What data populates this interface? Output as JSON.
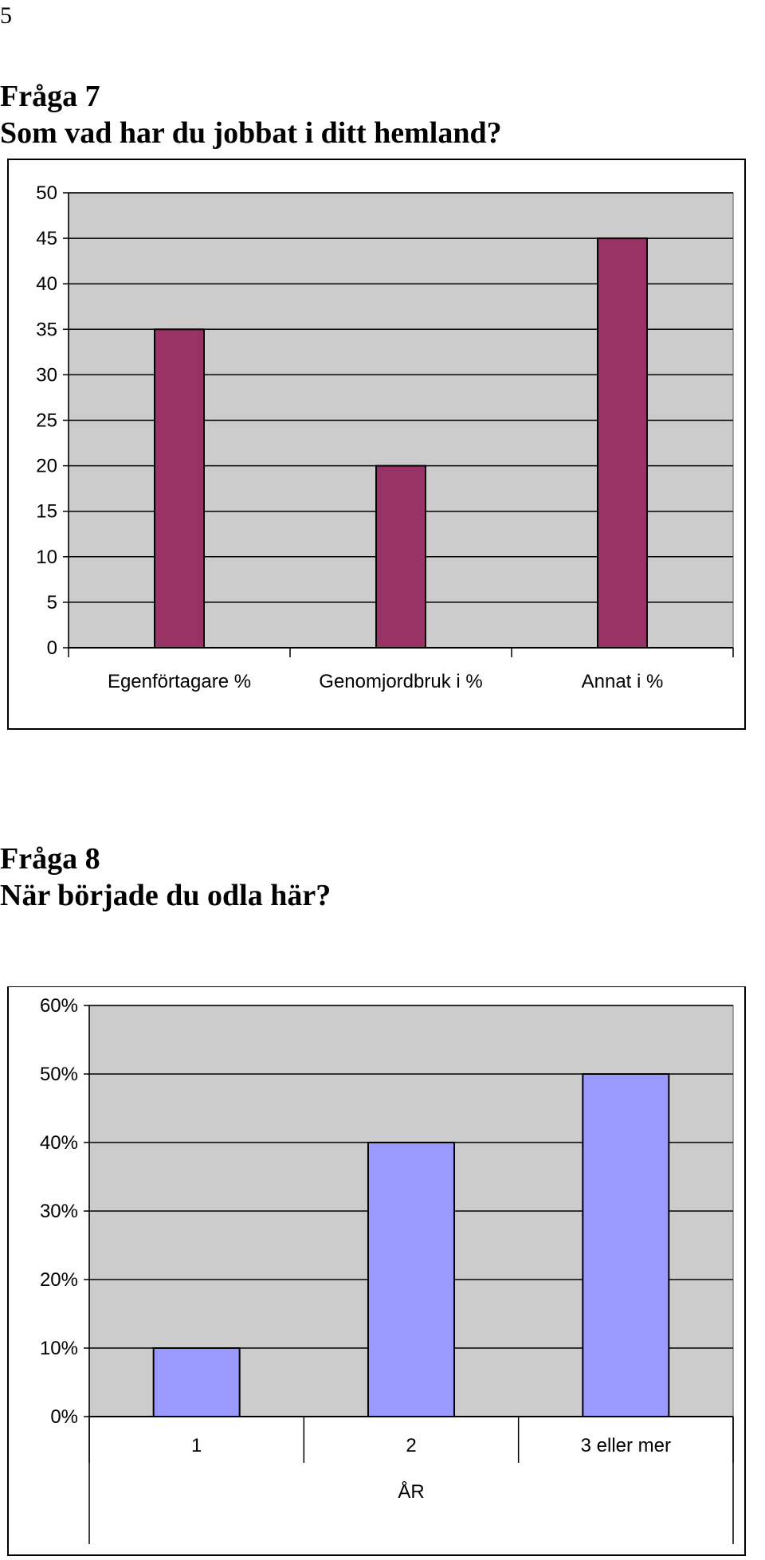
{
  "page": {
    "number": "5"
  },
  "question7": {
    "heading": "Fråga 7",
    "question": "Som vad har du jobbat i ditt hemland?"
  },
  "question8": {
    "heading": "Fråga 8",
    "question": "När började du odla här?"
  },
  "colors": {
    "plot_background": "#cccccc",
    "bar_q7": "#993366",
    "bar_q8": "#9999ff",
    "gridline": "#000000"
  },
  "chart_data": [
    {
      "type": "bar",
      "title": "",
      "categories": [
        "Egenförtagare %",
        "Genomjordbruk i %",
        "Annat i %"
      ],
      "values": [
        35,
        20,
        45
      ],
      "xlabel": "",
      "ylabel": "",
      "ylim": [
        0,
        50
      ],
      "yticks": [
        "0",
        "5",
        "10",
        "15",
        "20",
        "25",
        "30",
        "35",
        "40",
        "45",
        "50"
      ],
      "grid": true,
      "legend": "none"
    },
    {
      "type": "bar",
      "title": "",
      "categories": [
        "1",
        "2",
        "3 eller mer"
      ],
      "values": [
        10,
        40,
        50
      ],
      "xlabel": "ÅR",
      "ylabel": "",
      "ylim": [
        0,
        60
      ],
      "yticks": [
        "0%",
        "10%",
        "20%",
        "30%",
        "40%",
        "50%",
        "60%"
      ],
      "grid": true,
      "legend": "none"
    }
  ]
}
